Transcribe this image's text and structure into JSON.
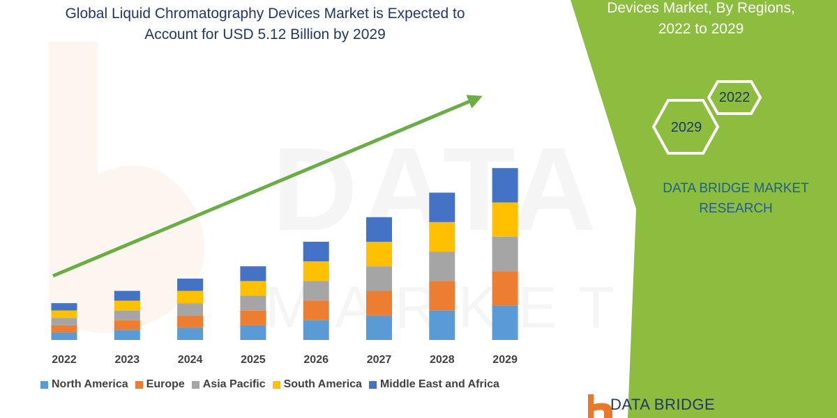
{
  "header": {
    "title_line1": "Global Liquid Chromatography Devices Market is Expected to",
    "title_line2": "Account for USD 5.12 Billion by 2029"
  },
  "side_panel": {
    "title_line1": "Devices Market, By Regions,",
    "title_line2": "2022 to 2029",
    "hex_labels": [
      "2022",
      "2029"
    ],
    "brand_line1": "DATA BRIDGE MARKET",
    "brand_line2": "RESEARCH",
    "bottom_logo_text": "DATA BRIDGE"
  },
  "watermark_text": "DATA BRIDGE",
  "watermark_subtext": "MARKET RESEARCH",
  "colors": {
    "panel_green": "#8cbd3f",
    "arrow_green": "#6aad45",
    "title_navy": "#1f3864",
    "logo_orange": "#e8792b"
  },
  "chart_data": {
    "type": "bar",
    "stacked": true,
    "categories": [
      "2022",
      "2023",
      "2024",
      "2025",
      "2026",
      "2027",
      "2028",
      "2029"
    ],
    "series": [
      {
        "name": "North America",
        "color": "#5b9bd5",
        "values": [
          15,
          20,
          25,
          30,
          40,
          50,
          60,
          70
        ]
      },
      {
        "name": "Europe",
        "color": "#ed7d31",
        "values": [
          15,
          20,
          25,
          30,
          40,
          50,
          60,
          70
        ]
      },
      {
        "name": "Asia Pacific",
        "color": "#a5a5a5",
        "values": [
          15,
          20,
          25,
          30,
          40,
          50,
          60,
          70
        ]
      },
      {
        "name": "South America",
        "color": "#ffc000",
        "values": [
          15,
          20,
          25,
          30,
          40,
          50,
          60,
          70
        ]
      },
      {
        "name": "Middle East and Africa",
        "color": "#4472c4",
        "values": [
          15,
          20,
          25,
          30,
          40,
          50,
          60,
          70
        ]
      }
    ],
    "yaxis_visible": false,
    "grid": false,
    "trend_arrow": true,
    "legend_position": "bottom"
  }
}
